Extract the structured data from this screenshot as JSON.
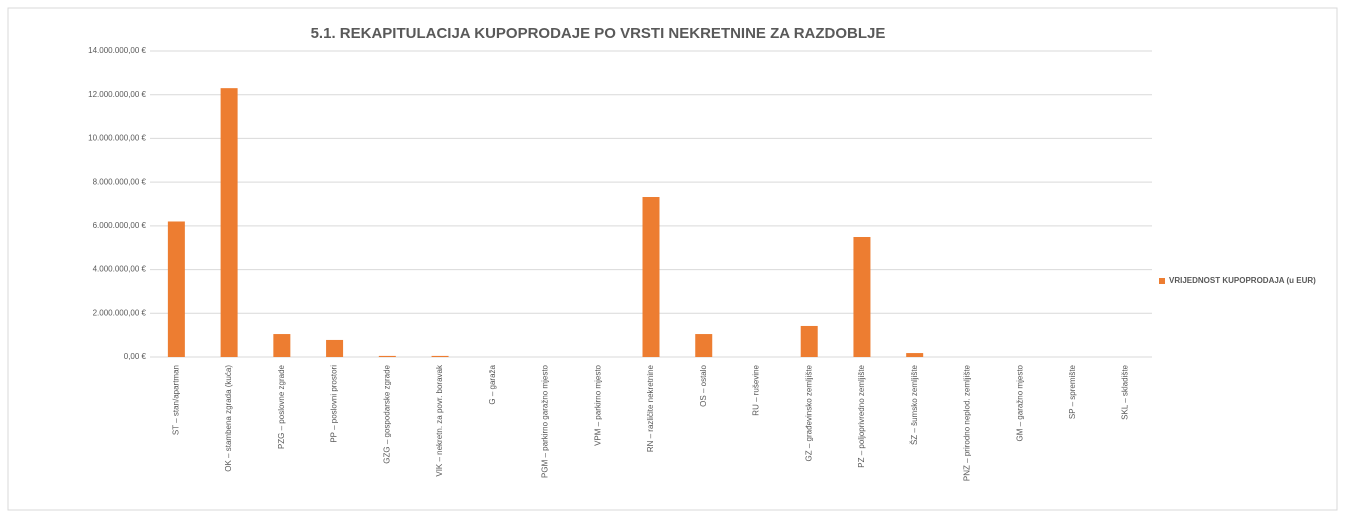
{
  "chart_data": {
    "type": "bar",
    "title": "5.1. REKAPITULACIJA KUPOPRODAJE PO VRSTI NEKRETNINE ZA RAZDOBLJE",
    "categories": [
      "ST – stan/apartman",
      "OK – stambena zgrada (kuća)",
      "PZG – poslovne zgrade",
      "PP – poslovni prostori",
      "GZG – gospodarske zgrade",
      "VIK – nekretn. za povr. boravak",
      "G – garaža",
      "PGM – parkirno garažno mjesto",
      "VPM – parkirno mjesto",
      "RN – različite nekretnine",
      "OS – ostalo",
      "RU – ruševine",
      "GZ – građevinsko zemljište",
      "PZ – poljoprivredno zemljište",
      "ŠZ – šumsko zemljište",
      "PNZ – prirodno neplod. zemljište",
      "GM – garažno mjesto",
      "SP – spremište",
      "SKL – skladište"
    ],
    "series": [
      {
        "name": "VRIJEDNOST KUPOPRODAJA (u EUR)",
        "color": "#ed7d31",
        "values": [
          6200000,
          12300000,
          1050000,
          780000,
          50000,
          50000,
          0,
          0,
          0,
          7320000,
          1050000,
          0,
          1420000,
          5490000,
          180000,
          0,
          0,
          0,
          0
        ]
      }
    ],
    "ylim": [
      0,
      14000000
    ],
    "yticks": [
      {
        "value": 0,
        "label": "0,00 €"
      },
      {
        "value": 2000000,
        "label": "2.000.000,00 €"
      },
      {
        "value": 4000000,
        "label": "4.000.000,00 €"
      },
      {
        "value": 6000000,
        "label": "6.000.000,00 €"
      },
      {
        "value": 8000000,
        "label": "8.000.000,00 €"
      },
      {
        "value": 10000000,
        "label": "10.000.000,00 €"
      },
      {
        "value": 12000000,
        "label": "12.000.000,00 €"
      },
      {
        "value": 14000000,
        "label": "14.000.000,00 €"
      }
    ],
    "grid": true,
    "legend": "right"
  }
}
